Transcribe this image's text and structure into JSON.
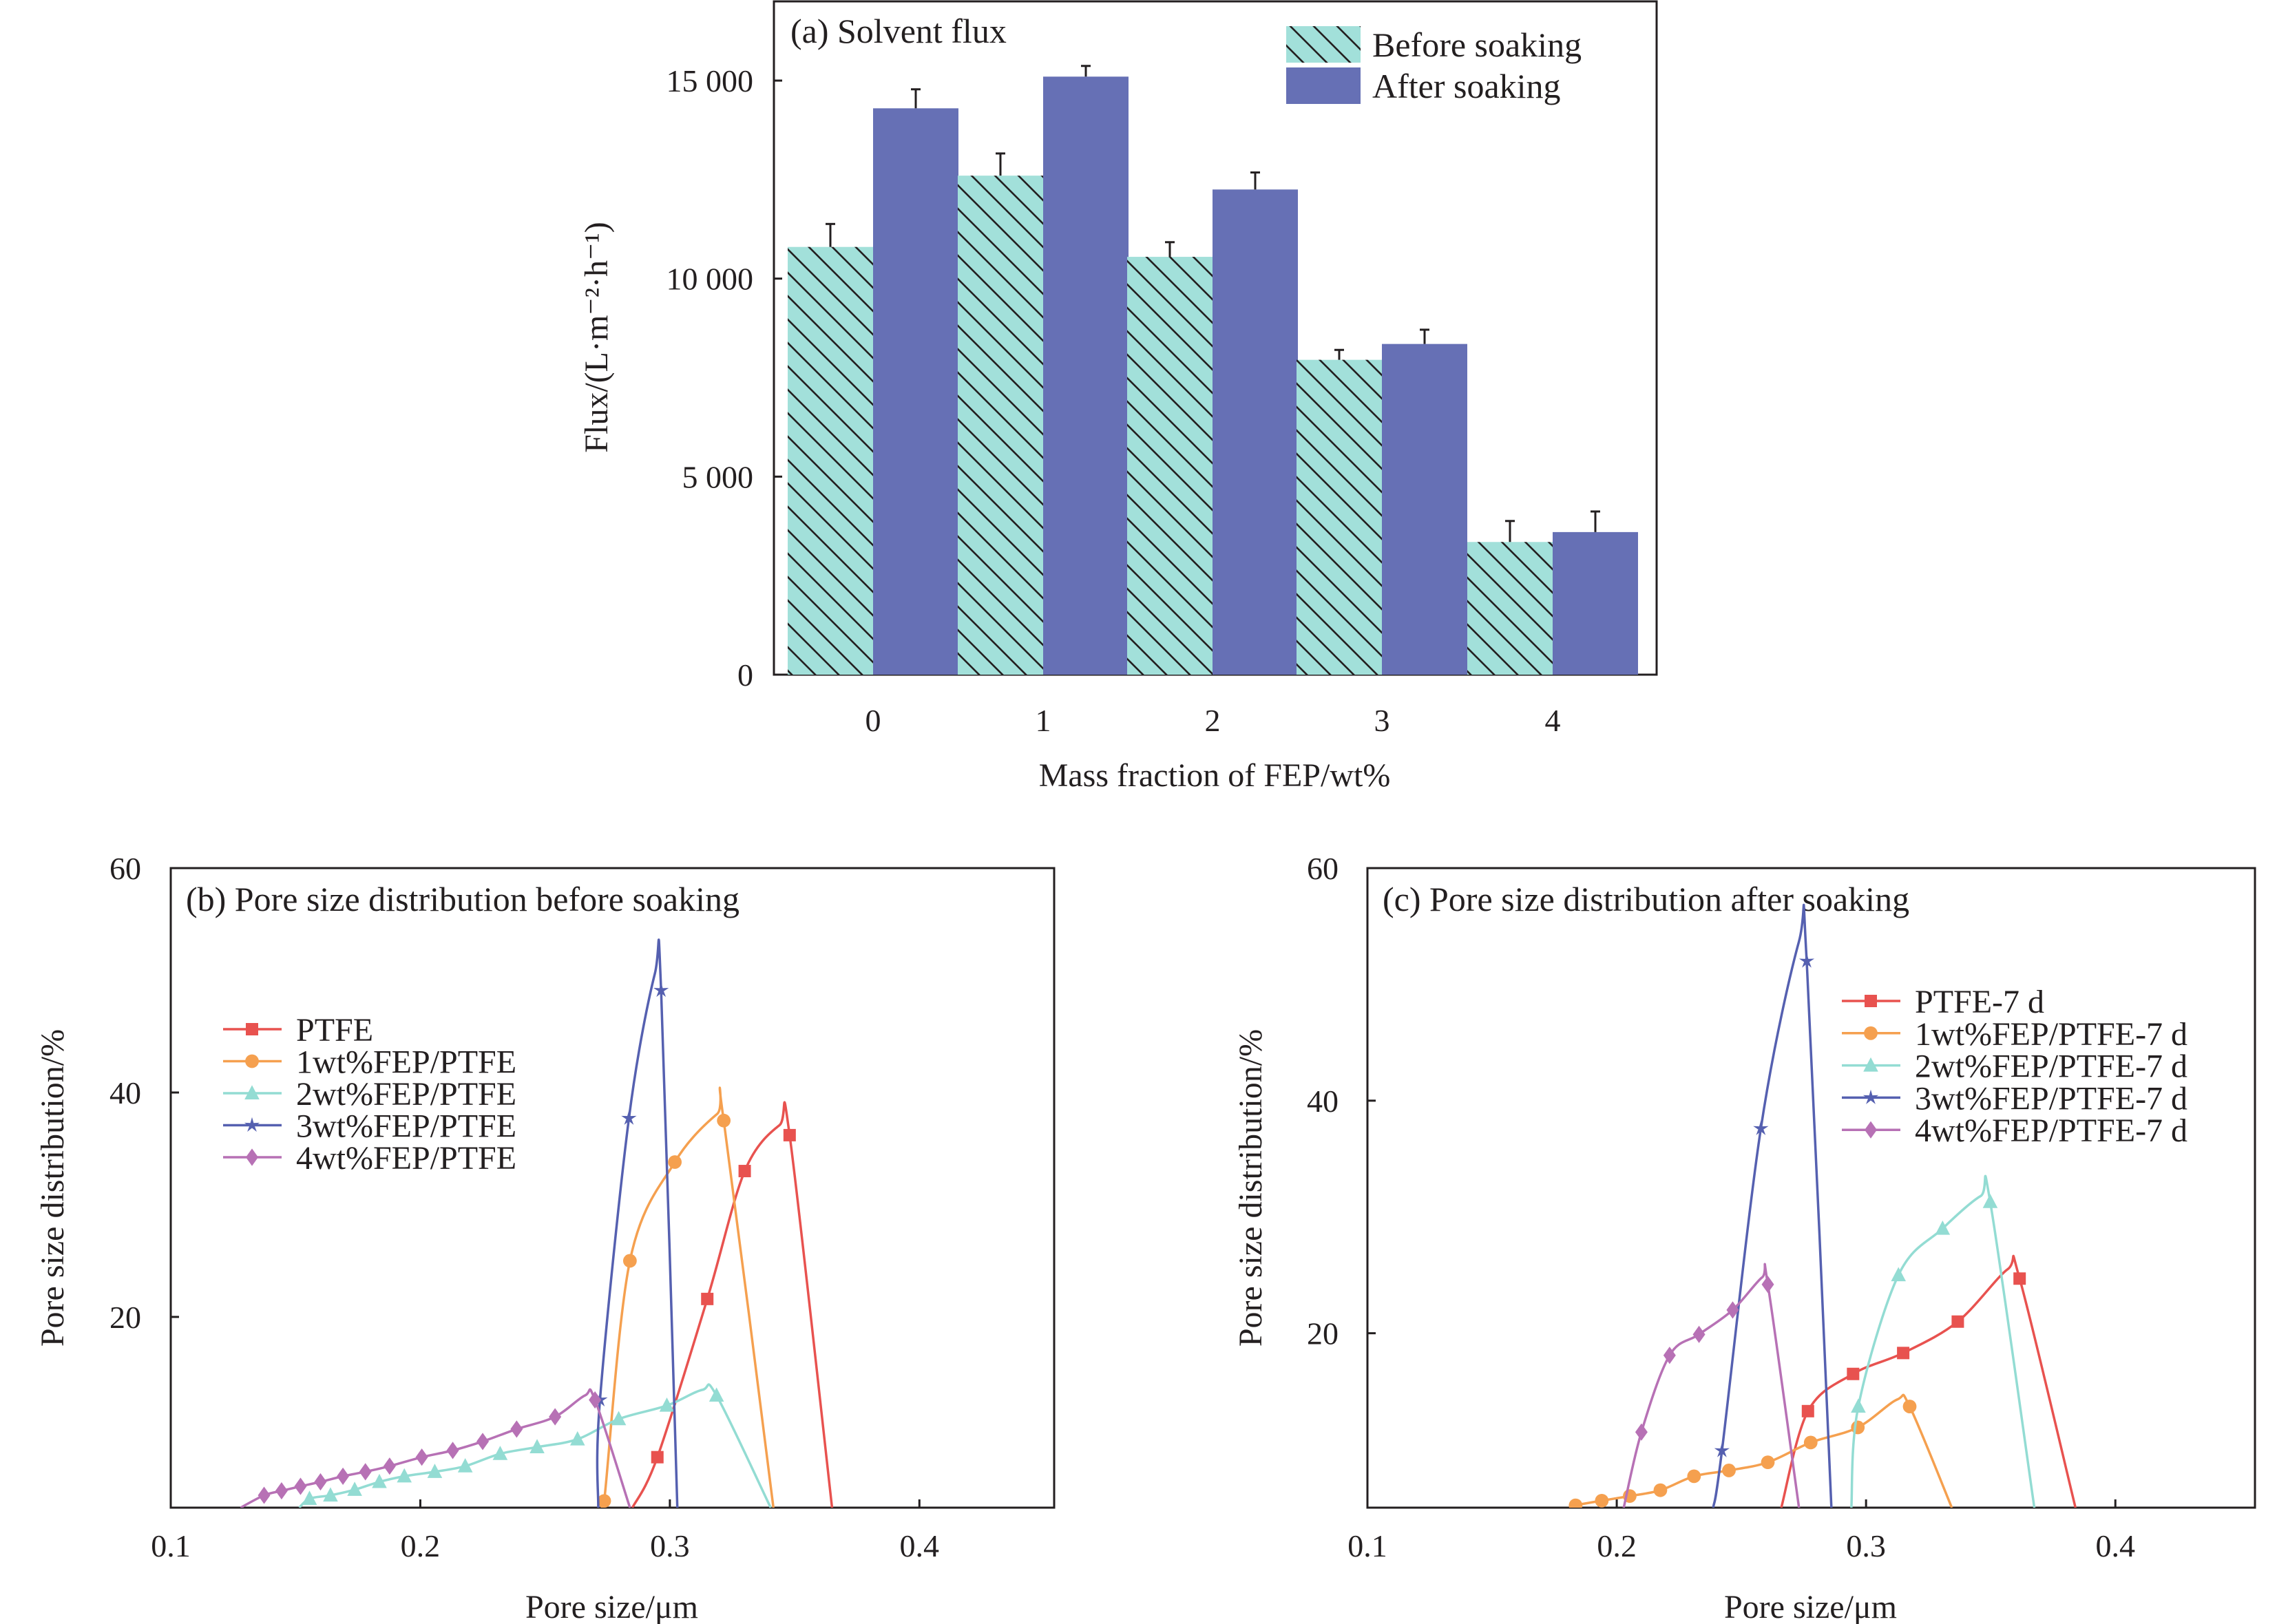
{
  "chart_data": [
    {
      "type": "bar",
      "title": "(a) Solvent flux",
      "xlabel": "Mass fraction of FEP/wt%",
      "ylabel": "Flux/(L·m⁻²·h⁻¹)",
      "categories": [
        "0",
        "1",
        "2",
        "3",
        "4"
      ],
      "ylim": [
        0,
        17000
      ],
      "yticks": [
        0,
        5000,
        10000,
        15000
      ],
      "ytick_labels": [
        "0",
        "5 000",
        "10 000",
        "15 000"
      ],
      "legend_position": "top-right",
      "series": [
        {
          "name": "Before soaking",
          "color": "#a2e0da",
          "hatch": true,
          "values": [
            10800,
            12600,
            10550,
            7950,
            3350
          ],
          "errors": [
            580,
            560,
            370,
            250,
            530
          ]
        },
        {
          "name": "After soaking",
          "color": "#6670b5",
          "hatch": false,
          "values": [
            14300,
            15100,
            12250,
            8350,
            3600
          ],
          "errors": [
            480,
            270,
            430,
            360,
            520
          ]
        }
      ]
    },
    {
      "type": "line",
      "title": "(b) Pore size distribution before soaking",
      "xlabel": "Pore size/μm",
      "ylabel": "Pore size distribution/%",
      "xlim": [
        0.1,
        0.454
      ],
      "ylim": [
        3,
        60
      ],
      "xticks": [
        0.1,
        0.2,
        0.3,
        0.4
      ],
      "xtick_labels": [
        "0.1",
        "0.2",
        "0.3",
        "0.4"
      ],
      "yticks": [
        20,
        40,
        60
      ],
      "ytick_labels": [
        "20",
        "40",
        "60"
      ],
      "legend_position": "upper-left",
      "series": [
        {
          "name": "PTFE",
          "color": "#e8524f",
          "marker": "square",
          "points": [
            [
              0.295,
              7.5
            ],
            [
              0.315,
              21.6
            ],
            [
              0.33,
              33.0
            ],
            [
              0.348,
              36.2
            ]
          ],
          "curve": [
            [
              0.285,
              3
            ],
            [
              0.295,
              7.5
            ],
            [
              0.315,
              21.6
            ],
            [
              0.33,
              33.0
            ],
            [
              0.344,
              37.1
            ],
            [
              0.348,
              36.2
            ],
            [
              0.365,
              3
            ]
          ]
        },
        {
          "name": "1wt%FEP/PTFE",
          "color": "#f5a04f",
          "marker": "circle",
          "points": [
            [
              0.2737,
              3.6
            ],
            [
              0.284,
              25.0
            ],
            [
              0.302,
              33.8
            ],
            [
              0.3216,
              37.5
            ]
          ],
          "curve": [
            [
              0.2725,
              3
            ],
            [
              0.2737,
              3.6
            ],
            [
              0.284,
              25.0
            ],
            [
              0.302,
              33.8
            ],
            [
              0.319,
              38.1
            ],
            [
              0.3216,
              37.5
            ],
            [
              0.3415,
              3
            ]
          ]
        },
        {
          "name": "2wt%FEP/PTFE",
          "color": "#93dcd3",
          "marker": "triangle",
          "points": [
            [
              0.1556,
              3.8
            ],
            [
              0.164,
              4.1
            ],
            [
              0.1737,
              4.6
            ],
            [
              0.1836,
              5.3
            ],
            [
              0.1936,
              5.8
            ],
            [
              0.2058,
              6.2
            ],
            [
              0.218,
              6.7
            ],
            [
              0.232,
              7.8
            ],
            [
              0.2468,
              8.4
            ],
            [
              0.263,
              9.1
            ],
            [
              0.2795,
              10.9
            ],
            [
              0.2988,
              12.1
            ],
            [
              0.3187,
              13.0
            ]
          ],
          "curve": [
            [
              0.1515,
              3
            ],
            [
              0.1556,
              3.8
            ],
            [
              0.164,
              4.1
            ],
            [
              0.1737,
              4.6
            ],
            [
              0.1836,
              5.3
            ],
            [
              0.1936,
              5.8
            ],
            [
              0.2058,
              6.2
            ],
            [
              0.218,
              6.7
            ],
            [
              0.232,
              7.8
            ],
            [
              0.2468,
              8.4
            ],
            [
              0.263,
              9.1
            ],
            [
              0.2795,
              10.9
            ],
            [
              0.2988,
              12.1
            ],
            [
              0.313,
              13.5
            ],
            [
              0.3187,
              13.0
            ],
            [
              0.3404,
              3
            ]
          ]
        },
        {
          "name": "3wt%FEP/PTFE",
          "color": "#5560b0",
          "marker": "star",
          "points": [
            [
              0.272,
              12.6
            ],
            [
              0.2836,
              37.7
            ],
            [
              0.2965,
              49.1
            ]
          ],
          "curve": [
            [
              0.2713,
              3
            ],
            [
              0.272,
              12.6
            ],
            [
              0.2836,
              37.7
            ],
            [
              0.294,
              50.6
            ],
            [
              0.2965,
              49.1
            ],
            [
              0.303,
              3
            ]
          ]
        },
        {
          "name": "4wt%FEP/PTFE",
          "color": "#b771b5",
          "marker": "diamond",
          "points": [
            [
              0.1374,
              4.1
            ],
            [
              0.1444,
              4.5
            ],
            [
              0.152,
              4.9
            ],
            [
              0.16,
              5.3
            ],
            [
              0.169,
              5.8
            ],
            [
              0.178,
              6.2
            ],
            [
              0.1877,
              6.7
            ],
            [
              0.2006,
              7.5
            ],
            [
              0.213,
              8.1
            ],
            [
              0.225,
              8.9
            ],
            [
              0.2386,
              10.0
            ],
            [
              0.254,
              11.1
            ],
            [
              0.27,
              12.6
            ]
          ],
          "curve": [
            [
              0.128,
              3
            ],
            [
              0.1374,
              4.1
            ],
            [
              0.1444,
              4.5
            ],
            [
              0.152,
              4.9
            ],
            [
              0.16,
              5.3
            ],
            [
              0.169,
              5.8
            ],
            [
              0.178,
              6.2
            ],
            [
              0.1877,
              6.7
            ],
            [
              0.2006,
              7.5
            ],
            [
              0.213,
              8.1
            ],
            [
              0.225,
              8.9
            ],
            [
              0.2386,
              10.0
            ],
            [
              0.254,
              11.1
            ],
            [
              0.266,
              13.0
            ],
            [
              0.27,
              12.6
            ],
            [
              0.284,
              3
            ]
          ]
        }
      ]
    },
    {
      "type": "line",
      "title": "(c) Pore size distribution after soaking",
      "xlabel": "Pore size/μm",
      "ylabel": "Pore size distribution/%",
      "xlim": [
        0.1,
        0.456
      ],
      "ylim": [
        5,
        60
      ],
      "xticks": [
        0.1,
        0.2,
        0.3,
        0.4
      ],
      "xtick_labels": [
        "0.1",
        "0.2",
        "0.3",
        "0.4"
      ],
      "yticks": [
        20,
        40,
        60
      ],
      "ytick_labels": [
        "20",
        "40",
        "60"
      ],
      "legend_position": "upper-right",
      "series": [
        {
          "name": "PTFE-7 d",
          "color": "#e8524f",
          "marker": "square",
          "points": [
            [
              0.2767,
              13.3
            ],
            [
              0.2948,
              16.5
            ],
            [
              0.3149,
              18.3
            ],
            [
              0.3368,
              21.0
            ],
            [
              0.3616,
              24.7
            ]
          ],
          "curve": [
            [
              0.266,
              5
            ],
            [
              0.2767,
              13.3
            ],
            [
              0.2948,
              16.5
            ],
            [
              0.3149,
              18.3
            ],
            [
              0.3368,
              21.0
            ],
            [
              0.3568,
              25.5
            ],
            [
              0.3616,
              24.7
            ],
            [
              0.384,
              5
            ]
          ]
        },
        {
          "name": "1wt%FEP/PTFE-7 d",
          "color": "#f5a04f",
          "marker": "circle",
          "points": [
            [
              0.1835,
              5.2
            ],
            [
              0.194,
              5.6
            ],
            [
              0.2052,
              6.0
            ],
            [
              0.2175,
              6.5
            ],
            [
              0.231,
              7.7
            ],
            [
              0.245,
              8.2
            ],
            [
              0.2606,
              8.9
            ],
            [
              0.2778,
              10.6
            ],
            [
              0.2967,
              11.9
            ],
            [
              0.3175,
              13.7
            ]
          ],
          "curve": [
            [
              0.1816,
              5
            ],
            [
              0.1835,
              5.2
            ],
            [
              0.194,
              5.6
            ],
            [
              0.2052,
              6.0
            ],
            [
              0.2175,
              6.5
            ],
            [
              0.231,
              7.7
            ],
            [
              0.245,
              8.2
            ],
            [
              0.2606,
              8.9
            ],
            [
              0.2778,
              10.6
            ],
            [
              0.2967,
              11.9
            ],
            [
              0.3125,
              14.3
            ],
            [
              0.3175,
              13.7
            ],
            [
              0.3344,
              5
            ]
          ]
        },
        {
          "name": "2wt%FEP/PTFE-7 d",
          "color": "#93dcd3",
          "marker": "triangle",
          "points": [
            [
              0.2969,
              13.7
            ],
            [
              0.313,
              25.0
            ],
            [
              0.3307,
              29.0
            ],
            [
              0.3498,
              31.3
            ]
          ],
          "curve": [
            [
              0.2941,
              5
            ],
            [
              0.2969,
              13.7
            ],
            [
              0.313,
              25.0
            ],
            [
              0.3307,
              29.0
            ],
            [
              0.346,
              31.8
            ],
            [
              0.3498,
              31.3
            ],
            [
              0.3675,
              5
            ]
          ]
        },
        {
          "name": "3wt%FEP/PTFE-7 d",
          "color": "#5560b0",
          "marker": "star",
          "points": [
            [
              0.2422,
              9.9
            ],
            [
              0.2578,
              37.6
            ],
            [
              0.2762,
              52.0
            ]
          ],
          "curve": [
            [
              0.2387,
              5
            ],
            [
              0.2422,
              9.9
            ],
            [
              0.2578,
              37.6
            ],
            [
              0.2731,
              53.7
            ],
            [
              0.2762,
              52.0
            ],
            [
              0.2861,
              5
            ]
          ]
        },
        {
          "name": "4wt%FEP/PTFE-7 d",
          "color": "#b771b5",
          "marker": "diamond",
          "points": [
            [
              0.2099,
              11.5
            ],
            [
              0.2212,
              18.1
            ],
            [
              0.233,
              19.9
            ],
            [
              0.2465,
              22.0
            ],
            [
              0.2606,
              24.2
            ]
          ],
          "curve": [
            [
              0.2028,
              5
            ],
            [
              0.2099,
              11.5
            ],
            [
              0.2212,
              18.1
            ],
            [
              0.233,
              19.9
            ],
            [
              0.2465,
              22.0
            ],
            [
              0.2583,
              24.8
            ],
            [
              0.2606,
              24.2
            ],
            [
              0.2731,
              5
            ]
          ]
        }
      ]
    }
  ]
}
